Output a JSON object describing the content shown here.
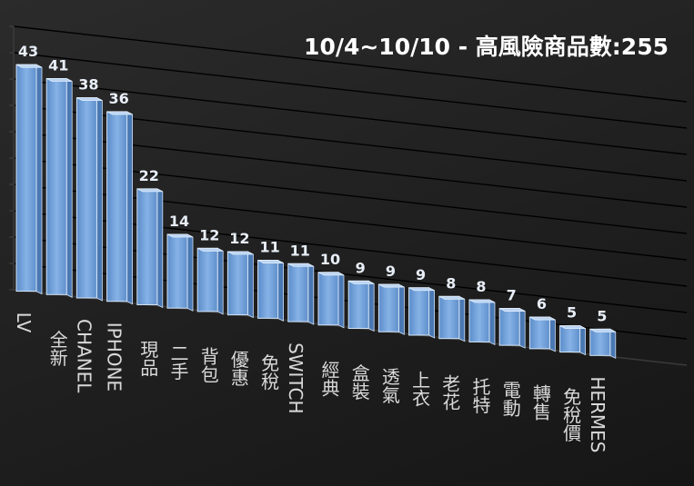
{
  "chart_data": {
    "type": "bar",
    "title": "10/4~10/10 - 高風險商品數:255",
    "categories": [
      "LV",
      "全新",
      "CHANEL",
      "IPHONE",
      "現品",
      "二手",
      "背包",
      "優惠",
      "免稅",
      "SWITCH",
      "經典",
      "盒裝",
      "透氣",
      "上衣",
      "老花",
      "托特",
      "電動",
      "轉售",
      "免稅價",
      "HERMES"
    ],
    "values": [
      43,
      41,
      38,
      36,
      22,
      14,
      12,
      12,
      11,
      11,
      10,
      9,
      9,
      9,
      8,
      8,
      7,
      6,
      5,
      5
    ],
    "ylim": [
      0,
      50
    ],
    "grid": true,
    "data_labels": true,
    "xlabel": "",
    "ylabel": "",
    "colors": {
      "bar_front": "#6f9fd8",
      "bar_top": "#b9d3f2",
      "bar_side": "#4a78b3",
      "grid": "#000000"
    }
  }
}
